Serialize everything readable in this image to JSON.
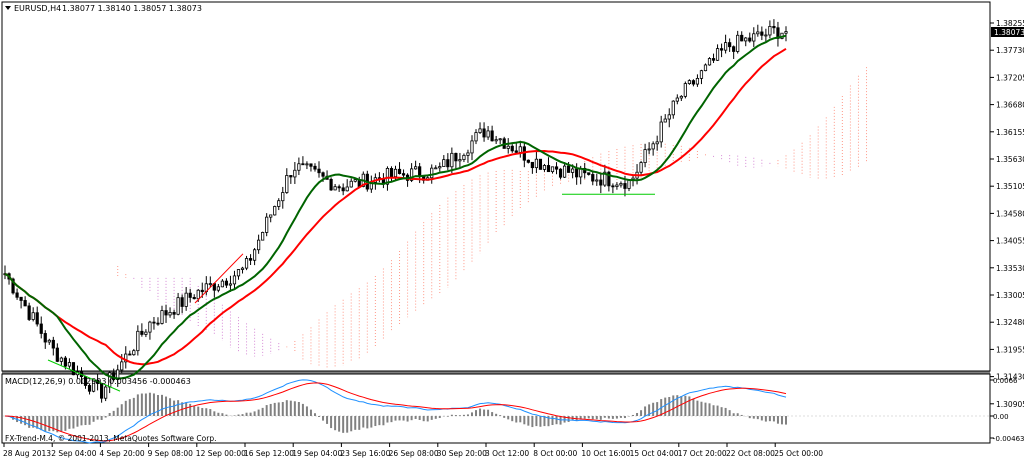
{
  "main_chart": {
    "symbol_header": "EURUSD,H4",
    "ohlc_header": "1.38077 1.38140 1.38057 1.38073",
    "current_price_label": "1.38073",
    "price_ticks": [
      "1.38255",
      "1.37730",
      "1.37205",
      "1.36680",
      "1.36155",
      "1.35630",
      "1.35105",
      "1.34580",
      "1.34055",
      "1.33530",
      "1.33005",
      "1.32480",
      "1.31955",
      "1.31430",
      "1.30905"
    ],
    "colors": {
      "candle": "#000000",
      "ma_fast": "#006400",
      "ma_slow": "#ff0000",
      "cloud_bull": "#ff9a8a",
      "cloud_bear": "#d68ad6",
      "trendline_red": "#ff0000",
      "trendline_green": "#00cc00"
    }
  },
  "macd_panel": {
    "header": "MACD(12,26,9) 0.002993 0.003456 -0.000463",
    "axis_ticks": [
      "0.0066",
      "0.00",
      "-0.004631"
    ],
    "copyright": "FX-Trend-M.4, © 2001-2013, MetaQuotes Software Corp."
  },
  "time_axis": {
    "labels": [
      "28 Aug 2013",
      "2 Sep 04:00",
      "4 Sep 20:00",
      "9 Sep 08:00",
      "12 Sep 00:00",
      "16 Sep 12:00",
      "19 Sep 04:00",
      "23 Sep 16:00",
      "26 Sep 08:00",
      "30 Sep 20:00",
      "3 Oct 12:00",
      "8 Oct 00:00",
      "10 Oct 16:00",
      "15 Oct 04:00",
      "17 Oct 20:00",
      "22 Oct 08:00",
      "25 Oct 00:00"
    ]
  },
  "chart_data": {
    "type": "candlestick",
    "symbol": "EURUSD",
    "timeframe": "H4",
    "title": "EURUSD,H4",
    "ohlc_last": {
      "open": 1.38077,
      "high": 1.3814,
      "low": 1.38057,
      "close": 1.38073
    },
    "ylim": [
      1.307,
      1.3845
    ],
    "price_path": [
      {
        "t": "28 Aug 2013",
        "price": 1.3345
      },
      {
        "t": "2 Sep 04:00",
        "price": 1.3195
      },
      {
        "t": "4 Sep 20:00",
        "price": 1.311
      },
      {
        "t": "9 Sep 08:00",
        "price": 1.3245
      },
      {
        "t": "12 Sep 00:00",
        "price": 1.3305
      },
      {
        "t": "16 Sep 12:00",
        "price": 1.335
      },
      {
        "t": "19 Sep 04:00",
        "price": 1.355
      },
      {
        "t": "23 Sep 16:00",
        "price": 1.351
      },
      {
        "t": "26 Sep 08:00",
        "price": 1.353
      },
      {
        "t": "30 Sep 20:00",
        "price": 1.354
      },
      {
        "t": "3 Oct 12:00",
        "price": 1.362
      },
      {
        "t": "8 Oct 00:00",
        "price": 1.356
      },
      {
        "t": "10 Oct 16:00",
        "price": 1.353
      },
      {
        "t": "15 Oct 04:00",
        "price": 1.352
      },
      {
        "t": "17 Oct 20:00",
        "price": 1.368
      },
      {
        "t": "22 Oct 08:00",
        "price": 1.378
      },
      {
        "t": "25 Oct 00:00",
        "price": 1.381
      }
    ],
    "macd": {
      "main": 0.002993,
      "signal": 0.003456,
      "histogram": -0.000463,
      "ylim": [
        -0.004631,
        0.0066
      ]
    }
  }
}
